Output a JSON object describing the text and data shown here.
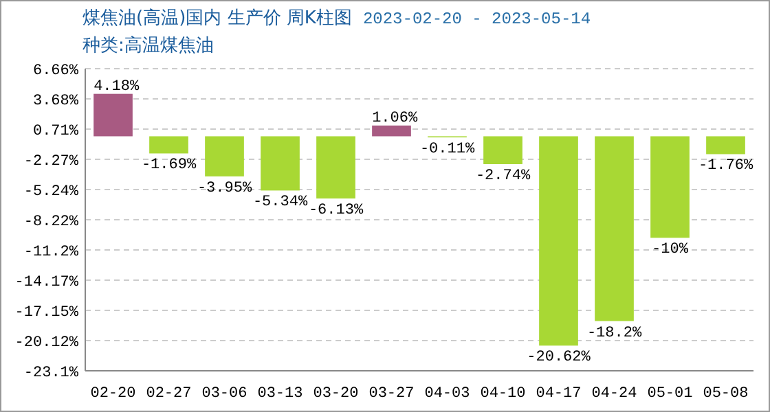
{
  "chart_data": {
    "type": "bar",
    "title": "煤焦油(高温)国内 生产价 周K柱图",
    "subtitle": "种类:高温煤焦油",
    "annotations": [
      "2023-02-20 - 2023-05-14"
    ],
    "categories": [
      "02-20",
      "02-27",
      "03-06",
      "03-13",
      "03-20",
      "03-27",
      "04-03",
      "04-10",
      "04-17",
      "04-24",
      "05-01",
      "05-08"
    ],
    "values": [
      4.18,
      -1.69,
      -3.95,
      -5.34,
      -6.13,
      1.06,
      -0.11,
      -2.74,
      -20.62,
      -18.2,
      -10,
      -1.76
    ],
    "value_labels": [
      "4.18%",
      "-1.69%",
      "-3.95%",
      "-5.34%",
      "-6.13%",
      "1.06%",
      "-0.11%",
      "-2.74%",
      "-20.62%",
      "-18.2%",
      "-10%",
      "-1.76%"
    ],
    "colors": [
      "#a85a82",
      "#a8d834",
      "#a8d834",
      "#a8d834",
      "#a8d834",
      "#a85a82",
      "#a8d834",
      "#a8d834",
      "#a8d834",
      "#a8d834",
      "#a8d834",
      "#a8d834"
    ],
    "ylim": [
      -23.1,
      6.66
    ],
    "yticks": [
      {
        "value": 6.66,
        "label": "6.66%"
      },
      {
        "value": 3.68,
        "label": "3.68%"
      },
      {
        "value": 0.71,
        "label": "0.71%"
      },
      {
        "value": -2.27,
        "label": "-2.27%"
      },
      {
        "value": -5.24,
        "label": "-5.24%"
      },
      {
        "value": -8.22,
        "label": "-8.22%"
      },
      {
        "value": -11.2,
        "label": "-11.2%"
      },
      {
        "value": -14.17,
        "label": "-14.17%"
      },
      {
        "value": -17.15,
        "label": "-17.15%"
      },
      {
        "value": -20.12,
        "label": "-20.12%"
      },
      {
        "value": -23.1,
        "label": "-23.1%"
      }
    ],
    "grid": "y"
  }
}
